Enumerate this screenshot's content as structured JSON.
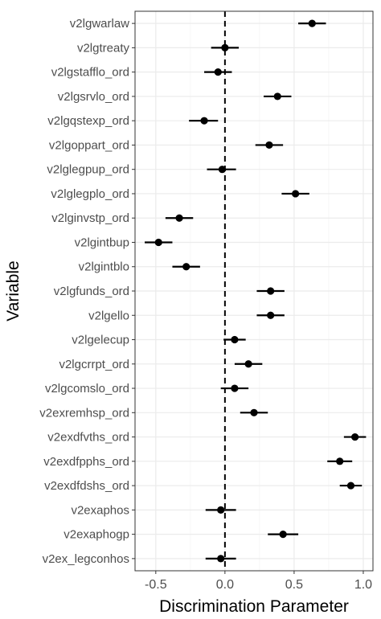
{
  "chart_data": {
    "type": "scatter",
    "subtype": "dot-and-whisker",
    "title": "",
    "xlabel": "Discrimination Parameter",
    "ylabel": "Variable",
    "xlim": [
      -0.65,
      1.07
    ],
    "xticks": [
      -0.5,
      0.0,
      0.5,
      1.0
    ],
    "xtick_labels": [
      "-0.5",
      "0.0",
      "0.5",
      "1.0"
    ],
    "reference_line": {
      "x": 0,
      "style": "dashed"
    },
    "grid": true,
    "legend": "none",
    "colors": {
      "panel_background": "#ffffff",
      "grid_major": "#ebebeb",
      "grid_minor": "#f5f5f5",
      "border": "#333333",
      "points": "#000000",
      "reference_line": "#000000"
    },
    "categories": [
      "v2lgwarlaw",
      "v2lgtreaty",
      "v2lgstafflo_ord",
      "v2lgsrvlo_ord",
      "v2lgqstexp_ord",
      "v2lgoppart_ord",
      "v2lglegpup_ord",
      "v2lglegplo_ord",
      "v2lginvstp_ord",
      "v2lgintbup",
      "v2lgintblo",
      "v2lgfunds_ord",
      "v2lgello",
      "v2lgelecup",
      "v2lgcrrpt_ord",
      "v2lgcomslo_ord",
      "v2exremhsp_ord",
      "v2exdfvths_ord",
      "v2exdfpphs_ord",
      "v2exdfdshs_ord",
      "v2exaphos",
      "v2exaphogp",
      "v2ex_legconhos"
    ],
    "estimates": [
      0.63,
      0.0,
      -0.05,
      0.38,
      -0.15,
      0.32,
      -0.02,
      0.51,
      -0.33,
      -0.48,
      -0.28,
      0.33,
      0.33,
      0.07,
      0.17,
      0.07,
      0.21,
      0.94,
      0.83,
      0.91,
      -0.03,
      0.42,
      -0.03
    ],
    "lower": [
      0.53,
      -0.1,
      -0.15,
      0.28,
      -0.26,
      0.22,
      -0.13,
      0.41,
      -0.43,
      -0.58,
      -0.38,
      0.23,
      0.23,
      -0.01,
      0.07,
      -0.03,
      0.11,
      0.86,
      0.74,
      0.83,
      -0.14,
      0.31,
      -0.14
    ],
    "upper": [
      0.73,
      0.1,
      0.05,
      0.48,
      -0.05,
      0.42,
      0.08,
      0.61,
      -0.23,
      -0.38,
      -0.18,
      0.43,
      0.43,
      0.15,
      0.27,
      0.17,
      0.31,
      1.02,
      0.92,
      0.99,
      0.08,
      0.53,
      0.08
    ]
  }
}
